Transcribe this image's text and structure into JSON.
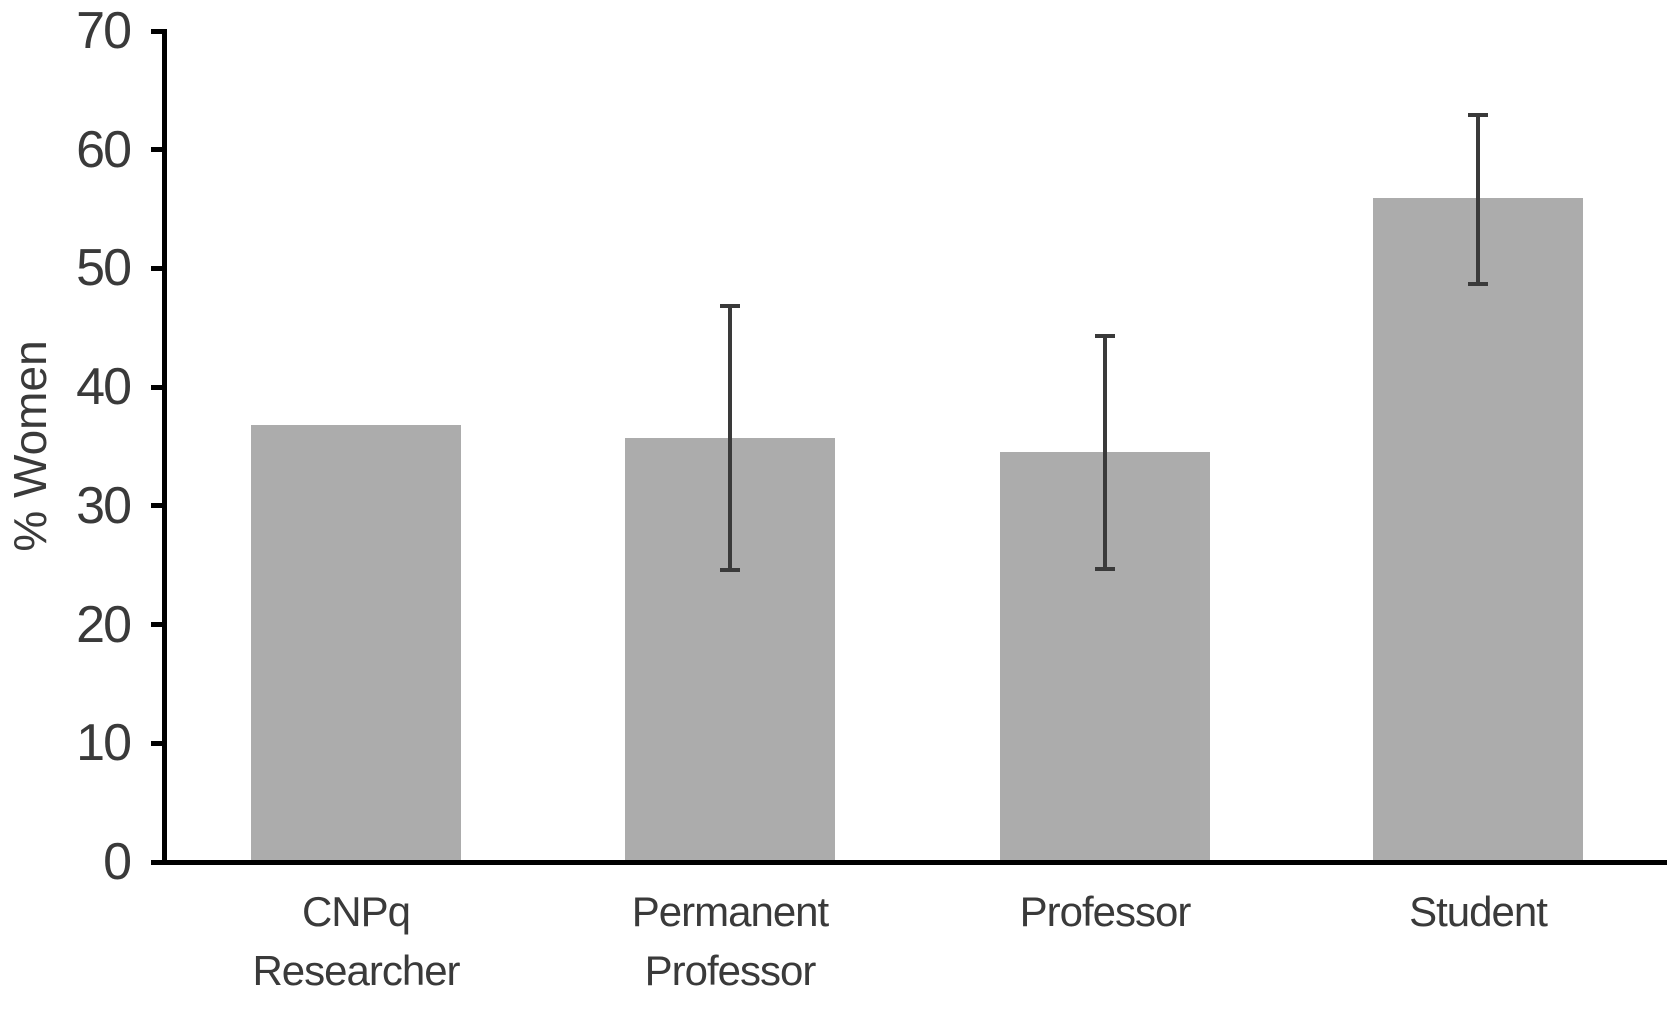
{
  "chart_data": {
    "type": "bar",
    "title": "",
    "xlabel": "",
    "ylabel": "% Women",
    "ylim": [
      0,
      70
    ],
    "yticks": [
      0,
      10,
      20,
      30,
      40,
      50,
      60,
      70
    ],
    "grid": false,
    "legend_position": "none",
    "categories": [
      "CNPq Researcher",
      "Permanent Professor",
      "Professor",
      "Student"
    ],
    "category_label_lines": [
      [
        "CNPq",
        "Researcher"
      ],
      [
        "Permanent",
        "Professor"
      ],
      [
        "Professor"
      ],
      [
        "Student"
      ]
    ],
    "values": [
      36.8,
      35.7,
      34.5,
      55.9
    ],
    "error_bars": [
      null,
      {
        "low": 24.6,
        "high": 46.8
      },
      {
        "low": 24.7,
        "high": 44.3
      },
      {
        "low": 48.7,
        "high": 62.9
      }
    ],
    "colors": {
      "bar_fill": "#acacac",
      "error_bar": "#3a3a3a",
      "axis_line": "#000000",
      "text": "#3a3a3a",
      "background": "#ffffff"
    }
  }
}
